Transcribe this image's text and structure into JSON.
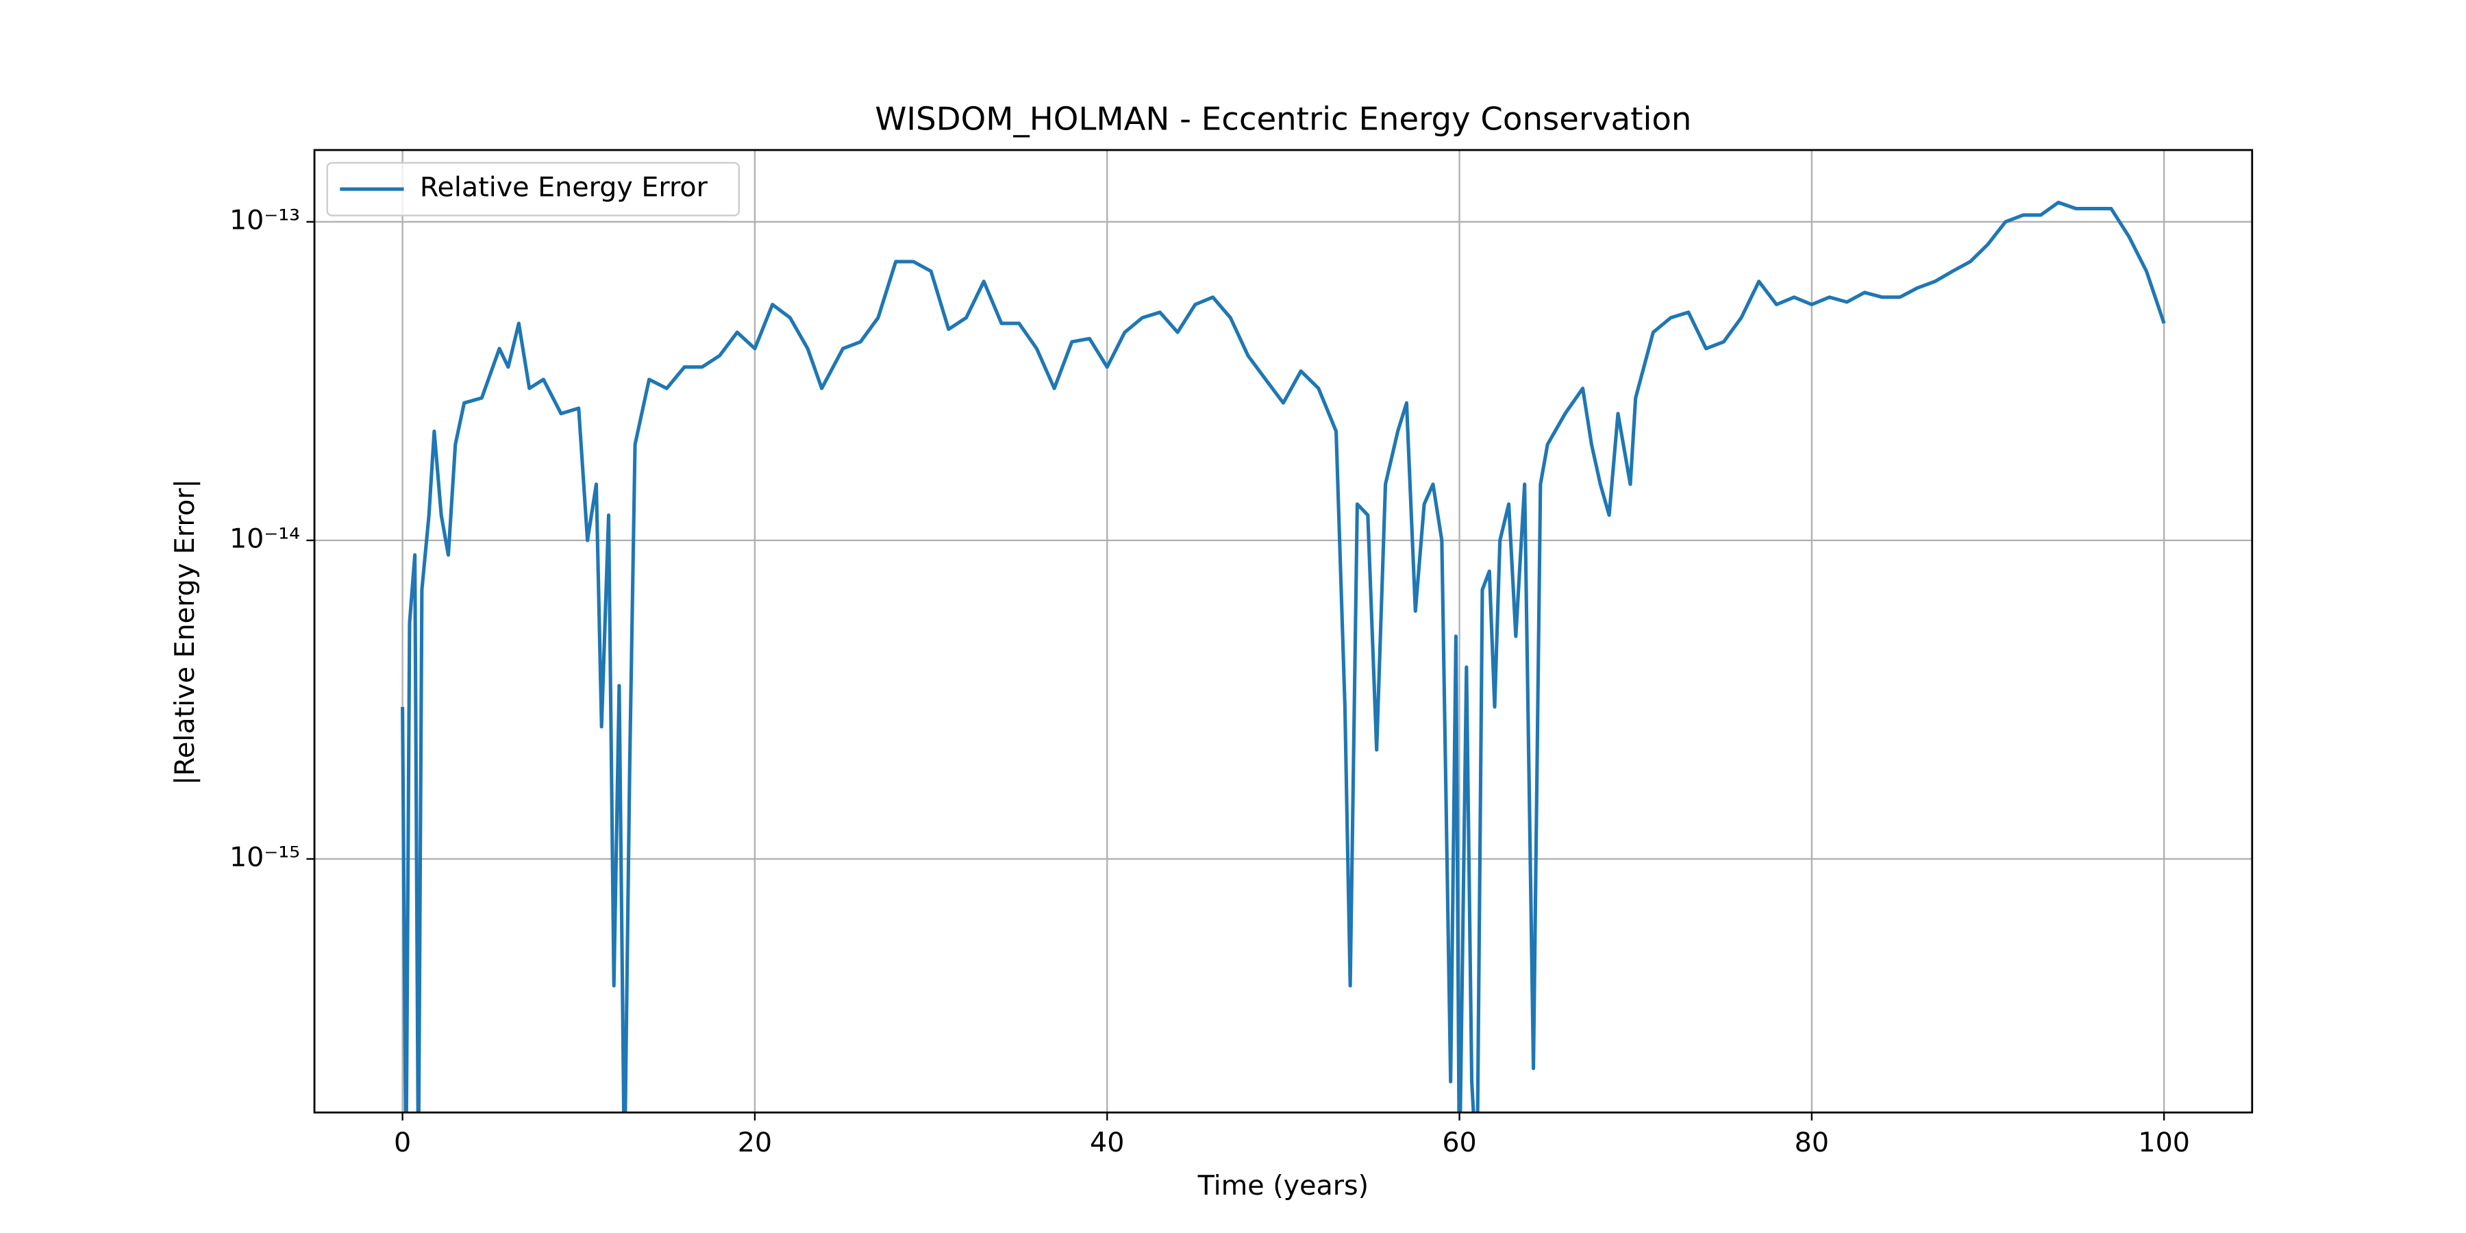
{
  "chart_data": {
    "type": "line",
    "title": "WISDOM_HOLMAN - Eccentric Energy Conservation",
    "xlabel": "Time (years)",
    "ylabel": "|Relative Energy Error|",
    "xlim": [
      -5,
      105
    ],
    "xticks": [
      0,
      20,
      40,
      60,
      80,
      100
    ],
    "ylim": [
      1.6e-16,
      1.68e-13
    ],
    "yticks": [
      {
        "value": 1e-15,
        "label": "10⁻¹⁵"
      },
      {
        "value": 1e-14,
        "label": "10⁻¹⁴"
      },
      {
        "value": 1e-13,
        "label": "10⁻¹³"
      }
    ],
    "log_y": true,
    "grid": true,
    "legend": "upper left",
    "x": [
      0,
      0.2,
      0.4,
      0.7,
      0.9,
      1.1,
      1.5,
      1.8,
      2.2,
      2.6,
      3,
      3.5,
      4.5,
      5.5,
      6,
      6.6,
      7.2,
      8,
      9,
      10,
      10.5,
      11,
      11.3,
      11.7,
      12,
      12.3,
      12.6,
      12.9,
      13.2,
      14,
      15,
      16,
      17,
      18,
      19,
      20,
      21,
      22,
      23,
      23.8,
      25,
      26,
      27,
      28,
      29,
      30,
      31,
      32,
      33,
      34,
      35,
      36,
      37,
      38,
      39,
      40,
      41,
      42,
      43,
      44,
      45,
      46,
      47,
      48,
      49,
      50,
      51,
      52,
      53,
      53.5,
      53.8,
      54.2,
      54.8,
      55.3,
      55.8,
      56.5,
      57,
      57.5,
      58,
      58.5,
      59,
      59.5,
      59.8,
      60,
      60.4,
      60.7,
      61,
      61.3,
      61.7,
      62,
      62.3,
      62.8,
      63.2,
      63.7,
      64.2,
      64.6,
      65,
      66,
      67,
      67.5,
      68,
      68.5,
      69,
      69.7,
      70,
      71,
      72,
      73,
      74,
      75,
      76,
      77,
      78,
      79,
      80,
      81,
      82,
      83,
      84,
      85,
      86,
      87,
      88,
      89,
      90,
      91,
      92,
      93,
      94,
      95,
      96,
      97,
      98,
      99,
      100
    ],
    "series": [
      {
        "name": "Relative Energy Error",
        "color": "#1f77b4",
        "values": [
          3e-15,
          1e-16,
          5.5e-15,
          9e-15,
          1e-16,
          7e-15,
          1.2e-14,
          2.2e-14,
          1.2e-14,
          9e-15,
          2e-14,
          2.7e-14,
          2.8e-14,
          4e-14,
          3.5e-14,
          4.8e-14,
          3e-14,
          3.2e-14,
          2.5e-14,
          2.6e-14,
          1e-14,
          1.5e-14,
          2.6e-15,
          1.2e-14,
          4e-16,
          3.5e-15,
          1e-16,
          2e-15,
          2e-14,
          3.2e-14,
          3e-14,
          3.5e-14,
          3.5e-14,
          3.8e-14,
          4.5e-14,
          4e-14,
          5.5e-14,
          5e-14,
          4e-14,
          3e-14,
          4e-14,
          4.2e-14,
          5e-14,
          7.5e-14,
          7.5e-14,
          7e-14,
          4.6e-14,
          5e-14,
          6.5e-14,
          4.8e-14,
          4.8e-14,
          4e-14,
          3e-14,
          4.2e-14,
          4.3e-14,
          3.5e-14,
          4.5e-14,
          5e-14,
          5.2e-14,
          4.5e-14,
          5.5e-14,
          5.8e-14,
          5e-14,
          3.8e-14,
          3.2e-14,
          2.7e-14,
          3.4e-14,
          3e-14,
          2.2e-14,
          3e-15,
          4e-16,
          1.3e-14,
          1.2e-14,
          2.2e-15,
          1.5e-14,
          2.2e-14,
          2.7e-14,
          6e-15,
          1.3e-14,
          1.5e-14,
          1e-14,
          2e-16,
          5e-15,
          1e-16,
          4e-15,
          2e-16,
          1e-16,
          7e-15,
          8e-15,
          3e-15,
          1e-14,
          1.3e-14,
          5e-15,
          1.5e-14,
          2.2e-16,
          1.5e-14,
          2e-14,
          2.5e-14,
          3e-14,
          2e-14,
          1.5e-14,
          1.2e-14,
          2.5e-14,
          1.5e-14,
          2.8e-14,
          4.5e-14,
          5e-14,
          5.2e-14,
          4e-14,
          4.2e-14,
          5e-14,
          6.5e-14,
          5.5e-14,
          5.8e-14,
          5.5e-14,
          5.8e-14,
          5.6e-14,
          6e-14,
          5.8e-14,
          5.8e-14,
          6.2e-14,
          6.5e-14,
          7e-14,
          7.5e-14,
          8.5e-14,
          1e-13,
          1.05e-13,
          1.05e-13,
          1.15e-13,
          1.1e-13,
          1.1e-13,
          1.1e-13,
          9e-14,
          7e-14,
          4.8e-14
        ]
      }
    ]
  }
}
